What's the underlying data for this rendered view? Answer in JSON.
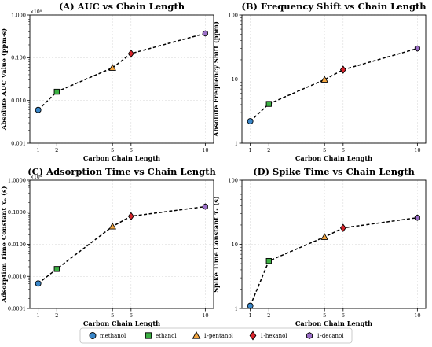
{
  "chart_data": [
    {
      "type": "line",
      "title": "(A) AUC vs Chain Length",
      "xlabel": "Carbon Chain Length",
      "ylabel": "Absolute AUC Value (ppm·s)",
      "yscale": "log",
      "multiplier": "×10⁸",
      "ylim": [
        0.001,
        1.0
      ],
      "yticks": [
        0.001,
        0.01,
        0.1,
        1.0
      ],
      "ytick_labels": [
        "0.001",
        "0.010",
        "0.100",
        "1.000"
      ],
      "xticks": [
        1,
        2,
        5,
        6,
        10
      ],
      "x": [
        1,
        2,
        5,
        6,
        10
      ],
      "values": [
        0.006,
        0.016,
        0.058,
        0.125,
        0.37
      ],
      "grid": true
    },
    {
      "type": "line",
      "title": "(B) Frequency Shift vs Chain Length",
      "xlabel": "Carbon Chain Length",
      "ylabel": "Absolute Frequency Shift (ppm)",
      "yscale": "log",
      "multiplier": "",
      "ylim": [
        1,
        100
      ],
      "yticks": [
        1,
        10,
        100
      ],
      "ytick_labels": [
        "1",
        "10",
        "100"
      ],
      "xticks": [
        1,
        2,
        5,
        6,
        10
      ],
      "x": [
        1,
        2,
        5,
        6,
        10
      ],
      "values": [
        2.2,
        4.1,
        9.8,
        14,
        30
      ],
      "grid": true
    },
    {
      "type": "line",
      "title": "(C) Adsorption Time vs Chain Length",
      "xlabel": "Carbon Chain Length",
      "ylabel": "Adsorption Time Constant τₐ (s)",
      "yscale": "log",
      "multiplier": "×10⁴",
      "ylim": [
        0.0001,
        1.0
      ],
      "yticks": [
        0.0001,
        0.001,
        0.01,
        0.1,
        1.0
      ],
      "ytick_labels": [
        "0.0001",
        "0.0010",
        "0.0100",
        "0.1000",
        "1.0000"
      ],
      "xticks": [
        1,
        2,
        5,
        6,
        10
      ],
      "x": [
        1,
        2,
        5,
        6,
        10
      ],
      "values": [
        0.0006,
        0.0017,
        0.036,
        0.075,
        0.15
      ],
      "grid": true
    },
    {
      "type": "line",
      "title": "(D) Spike Time vs Chain Length",
      "xlabel": "Carbon Chain Length",
      "ylabel": "Spike Time Constant τₛ (s)",
      "yscale": "log",
      "multiplier": "",
      "ylim": [
        1,
        100
      ],
      "yticks": [
        1,
        10,
        100
      ],
      "ytick_labels": [
        "1",
        "10",
        "100"
      ],
      "xticks": [
        1,
        2,
        5,
        6,
        10
      ],
      "x": [
        1,
        2,
        5,
        6,
        10
      ],
      "values": [
        1.1,
        5.5,
        13,
        18,
        26
      ],
      "grid": true
    }
  ],
  "points": [
    {
      "name": "methanol",
      "marker": "circle",
      "color": "#3a86c8"
    },
    {
      "name": "ethanol",
      "marker": "square",
      "color": "#3cb043"
    },
    {
      "name": "1-pentanol",
      "marker": "triangle",
      "color": "#f4a640"
    },
    {
      "name": "1-hexanol",
      "marker": "diamond",
      "color": "#d9242b"
    },
    {
      "name": "1-decanol",
      "marker": "hexagon",
      "color": "#9b6fc8"
    }
  ],
  "legend": {
    "placement": "bottom-center"
  },
  "line_style": {
    "color": "#000000",
    "dash": "dashed"
  }
}
